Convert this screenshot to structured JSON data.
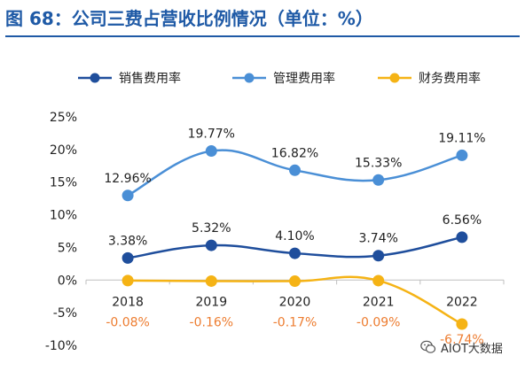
{
  "figure_title": "图 68：公司三费占营收比例情况（单位：%）",
  "watermark": {
    "text": "AIOT大数据",
    "icon": "wechat-icon"
  },
  "colors": {
    "title": "#1f5aa6",
    "negative_label": "#ed7d31"
  },
  "chart_data": {
    "type": "line",
    "categories": [
      "2018",
      "2019",
      "2020",
      "2021",
      "2022"
    ],
    "ylim": [
      -10,
      25
    ],
    "yticks": [
      -10,
      -5,
      0,
      5,
      10,
      15,
      20,
      25
    ],
    "ytick_labels": [
      "-10%",
      "-5%",
      "0%",
      "5%",
      "10%",
      "15%",
      "20%",
      "25%"
    ],
    "legend_position": "top",
    "grid": false,
    "series": [
      {
        "name": "销售费用率",
        "color": "#1f4e9c",
        "values": [
          3.38,
          5.32,
          4.1,
          3.74,
          6.56
        ],
        "labels": [
          "3.38%",
          "5.32%",
          "4.10%",
          "3.74%",
          "6.56%"
        ]
      },
      {
        "name": "管理费用率",
        "color": "#4a8fd6",
        "values": [
          12.96,
          19.77,
          16.82,
          15.33,
          19.11
        ],
        "labels": [
          "12.96%",
          "19.77%",
          "16.82%",
          "15.33%",
          "19.11%"
        ]
      },
      {
        "name": "财务费用率",
        "color": "#f5b315",
        "values": [
          -0.08,
          -0.16,
          -0.17,
          -0.09,
          -6.74
        ],
        "labels": [
          "-0.08%",
          "-0.16%",
          "-0.17%",
          "-0.09%",
          "-6.74%"
        ]
      }
    ]
  }
}
